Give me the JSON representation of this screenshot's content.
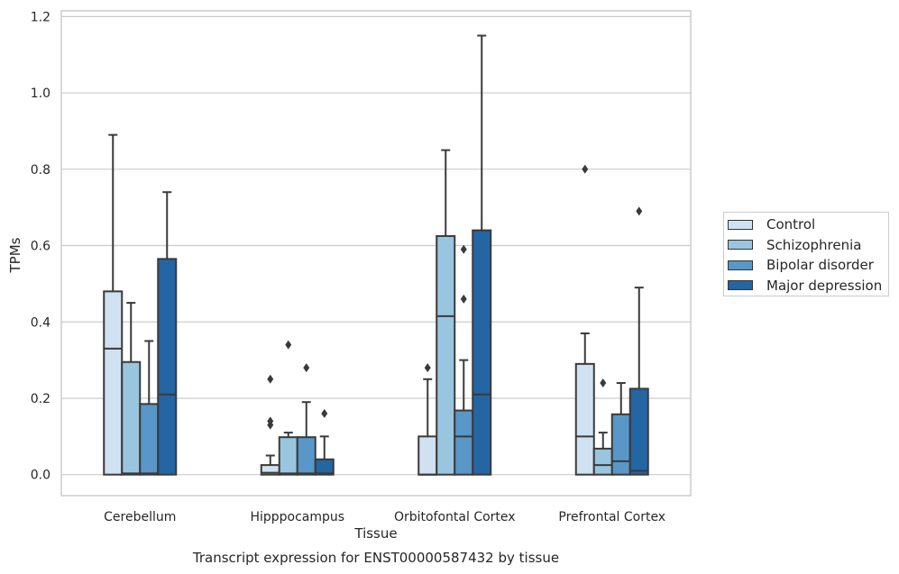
{
  "chart_data": {
    "type": "box",
    "title": "",
    "caption": "Transcript expression for ENST00000587432 by tissue",
    "xlabel": "Tissue",
    "ylabel": "TPMs",
    "ylim": [
      -0.055,
      1.215
    ],
    "yticks": [
      "0.0",
      "0.2",
      "0.4",
      "0.6",
      "0.8",
      "1.0",
      "1.2"
    ],
    "grid": true,
    "legend_position": "right",
    "categories": [
      "Cerebellum",
      "Hipppocampus",
      "Orbitofontal Cortex",
      "Prefrontal Cortex"
    ],
    "series": [
      {
        "name": "Control",
        "color": "#d0e1f2",
        "boxes": [
          {
            "q1": 0,
            "median": 0.33,
            "q3": 0.48,
            "whisker_low": 0,
            "whisker_high": 0.89,
            "outliers": []
          },
          {
            "q1": 0,
            "median": 0.005,
            "q3": 0.025,
            "whisker_low": 0,
            "whisker_high": 0.05,
            "outliers": [
              0.13,
              0.14,
              0.25
            ]
          },
          {
            "q1": 0,
            "median": 0,
            "q3": 0.1,
            "whisker_low": 0,
            "whisker_high": 0.25,
            "outliers": [
              0.28
            ]
          },
          {
            "q1": 0,
            "median": 0.1,
            "q3": 0.29,
            "whisker_low": 0,
            "whisker_high": 0.37,
            "outliers": [
              0.8
            ]
          }
        ]
      },
      {
        "name": "Schizophrenia",
        "color": "#9ac5de",
        "boxes": [
          {
            "q1": 0,
            "median": 0.003,
            "q3": 0.295,
            "whisker_low": 0,
            "whisker_high": 0.45,
            "outliers": []
          },
          {
            "q1": 0,
            "median": 0.003,
            "q3": 0.098,
            "whisker_low": 0,
            "whisker_high": 0.11,
            "outliers": [
              0.34
            ]
          },
          {
            "q1": 0,
            "median": 0.415,
            "q3": 0.625,
            "whisker_low": 0,
            "whisker_high": 0.85,
            "outliers": []
          },
          {
            "q1": 0,
            "median": 0.025,
            "q3": 0.068,
            "whisker_low": 0,
            "whisker_high": 0.11,
            "outliers": [
              0.24
            ]
          }
        ]
      },
      {
        "name": "Bipolar disorder",
        "color": "#5897c7",
        "boxes": [
          {
            "q1": 0,
            "median": 0.003,
            "q3": 0.185,
            "whisker_low": 0,
            "whisker_high": 0.35,
            "outliers": []
          },
          {
            "q1": 0,
            "median": 0.003,
            "q3": 0.098,
            "whisker_low": 0,
            "whisker_high": 0.19,
            "outliers": [
              0.28
            ]
          },
          {
            "q1": 0,
            "median": 0.1,
            "q3": 0.168,
            "whisker_low": 0,
            "whisker_high": 0.3,
            "outliers": [
              0.46,
              0.59
            ]
          },
          {
            "q1": 0,
            "median": 0.035,
            "q3": 0.158,
            "whisker_low": 0,
            "whisker_high": 0.24,
            "outliers": []
          }
        ]
      },
      {
        "name": "Major depression",
        "color": "#2465a4",
        "boxes": [
          {
            "q1": 0,
            "median": 0.21,
            "q3": 0.565,
            "whisker_low": 0,
            "whisker_high": 0.74,
            "outliers": []
          },
          {
            "q1": 0,
            "median": 0.003,
            "q3": 0.04,
            "whisker_low": 0,
            "whisker_high": 0.1,
            "outliers": [
              0.16
            ]
          },
          {
            "q1": 0,
            "median": 0.21,
            "q3": 0.64,
            "whisker_low": 0,
            "whisker_high": 1.15,
            "outliers": []
          },
          {
            "q1": 0,
            "median": 0.01,
            "q3": 0.225,
            "whisker_low": 0,
            "whisker_high": 0.49,
            "outliers": [
              0.69
            ]
          }
        ]
      }
    ]
  }
}
